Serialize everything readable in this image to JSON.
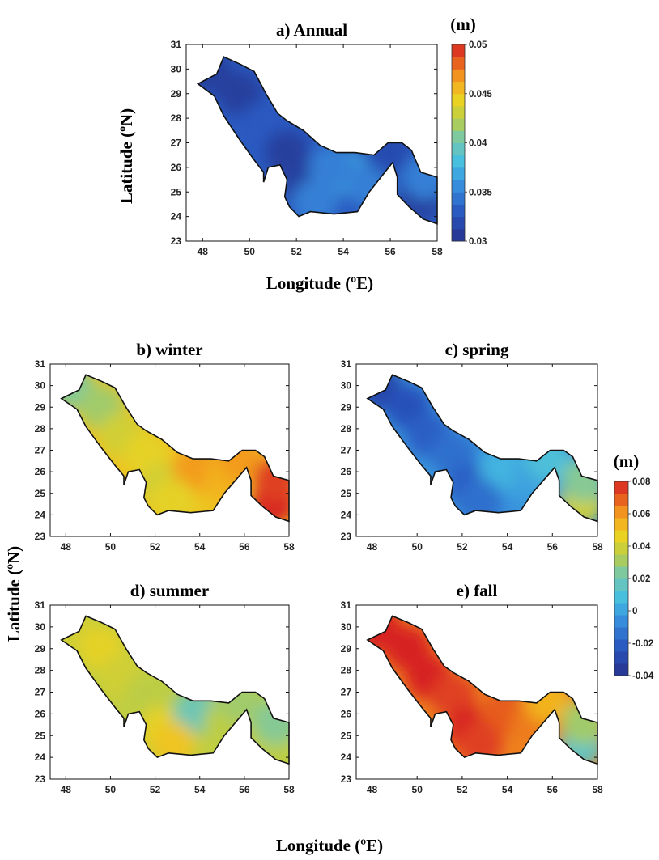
{
  "figure": {
    "top_xlabel": "Longitude (ºE)",
    "top_ylabel": "Latitude (ºN)",
    "bottom_xlabel": "Longitude (ºE)",
    "bottom_ylabel": "Latitude (ºN)"
  },
  "chart_data": [
    {
      "type": "heatmap",
      "panel": "annual",
      "title": "a) Annual",
      "xlabel": "Longitude (ºE)",
      "ylabel": "Latitude (ºN)",
      "xlim": [
        47.3,
        58
      ],
      "ylim": [
        23,
        31
      ],
      "xticks": [
        "48",
        "50",
        "52",
        "54",
        "56",
        "58"
      ],
      "yticks": [
        "23",
        "24",
        "25",
        "26",
        "27",
        "28",
        "29",
        "30",
        "31"
      ],
      "colorbar": {
        "label": "(m)",
        "range": [
          0.03,
          0.05
        ],
        "ticks": [
          "0.03",
          "0.035",
          "0.04",
          "0.045",
          "0.05"
        ]
      },
      "points": [
        {
          "lon": 48.3,
          "lat": 29.9,
          "value": 0.031
        },
        {
          "lon": 49.6,
          "lat": 29.0,
          "value": 0.031
        },
        {
          "lon": 50.5,
          "lat": 27.7,
          "value": 0.033
        },
        {
          "lon": 51.6,
          "lat": 26.6,
          "value": 0.031
        },
        {
          "lon": 52.3,
          "lat": 25.3,
          "value": 0.031
        },
        {
          "lon": 54.1,
          "lat": 25.8,
          "value": 0.037
        },
        {
          "lon": 55.1,
          "lat": 25.3,
          "value": 0.035
        },
        {
          "lon": 56.0,
          "lat": 26.6,
          "value": 0.032
        },
        {
          "lon": 57.3,
          "lat": 24.8,
          "value": 0.031
        },
        {
          "lon": 57.5,
          "lat": 25.6,
          "value": 0.035
        },
        {
          "lon": 53.5,
          "lat": 26.0,
          "value": 0.035
        },
        {
          "lon": 52.8,
          "lat": 24.6,
          "value": 0.035
        }
      ]
    },
    {
      "type": "heatmap",
      "panel": "winter",
      "title": "b) winter",
      "xlim": [
        47.3,
        58
      ],
      "ylim": [
        23,
        31
      ],
      "xticks": [
        "48",
        "50",
        "52",
        "54",
        "56",
        "58"
      ],
      "yticks": [
        "23",
        "24",
        "25",
        "26",
        "27",
        "28",
        "29",
        "30",
        "31"
      ],
      "points": [
        {
          "lon": 48.3,
          "lat": 29.9,
          "value": 0.025
        },
        {
          "lon": 49.6,
          "lat": 29.0,
          "value": 0.03
        },
        {
          "lon": 50.5,
          "lat": 27.7,
          "value": 0.04
        },
        {
          "lon": 51.6,
          "lat": 26.8,
          "value": 0.045
        },
        {
          "lon": 52.3,
          "lat": 25.3,
          "value": 0.04
        },
        {
          "lon": 53.8,
          "lat": 26.1,
          "value": 0.06
        },
        {
          "lon": 55.2,
          "lat": 25.6,
          "value": 0.055
        },
        {
          "lon": 55.8,
          "lat": 26.6,
          "value": 0.06
        },
        {
          "lon": 57.3,
          "lat": 24.6,
          "value": 0.08
        },
        {
          "lon": 57.4,
          "lat": 25.6,
          "value": 0.075
        },
        {
          "lon": 52.8,
          "lat": 24.6,
          "value": 0.045
        }
      ]
    },
    {
      "type": "heatmap",
      "panel": "spring",
      "title": "c) spring",
      "xlim": [
        47.3,
        58
      ],
      "ylim": [
        23,
        31
      ],
      "xticks": [
        "48",
        "50",
        "52",
        "54",
        "56",
        "58"
      ],
      "yticks": [
        "23",
        "24",
        "25",
        "26",
        "27",
        "28",
        "29",
        "30",
        "31"
      ],
      "points": [
        {
          "lon": 48.3,
          "lat": 29.9,
          "value": -0.03
        },
        {
          "lon": 49.6,
          "lat": 29.0,
          "value": -0.025
        },
        {
          "lon": 50.5,
          "lat": 27.7,
          "value": -0.02
        },
        {
          "lon": 51.6,
          "lat": 26.8,
          "value": -0.015
        },
        {
          "lon": 52.3,
          "lat": 25.3,
          "value": -0.02
        },
        {
          "lon": 53.8,
          "lat": 26.1,
          "value": 0.005
        },
        {
          "lon": 55.2,
          "lat": 25.6,
          "value": 0.0
        },
        {
          "lon": 55.8,
          "lat": 26.6,
          "value": 0.01
        },
        {
          "lon": 57.3,
          "lat": 24.6,
          "value": 0.04
        },
        {
          "lon": 57.4,
          "lat": 25.6,
          "value": 0.025
        },
        {
          "lon": 52.8,
          "lat": 24.6,
          "value": -0.015
        }
      ]
    },
    {
      "type": "heatmap",
      "panel": "summer",
      "title": "d) summer",
      "xlim": [
        47.3,
        58
      ],
      "ylim": [
        23,
        31
      ],
      "xticks": [
        "48",
        "50",
        "52",
        "54",
        "56",
        "58"
      ],
      "yticks": [
        "23",
        "24",
        "25",
        "26",
        "27",
        "28",
        "29",
        "30",
        "31"
      ],
      "points": [
        {
          "lon": 48.3,
          "lat": 29.9,
          "value": 0.04
        },
        {
          "lon": 49.6,
          "lat": 29.0,
          "value": 0.045
        },
        {
          "lon": 50.5,
          "lat": 27.7,
          "value": 0.04
        },
        {
          "lon": 51.6,
          "lat": 26.8,
          "value": 0.035
        },
        {
          "lon": 52.3,
          "lat": 25.3,
          "value": 0.045
        },
        {
          "lon": 53.8,
          "lat": 26.1,
          "value": 0.02
        },
        {
          "lon": 55.2,
          "lat": 25.6,
          "value": 0.035
        },
        {
          "lon": 55.8,
          "lat": 26.6,
          "value": 0.03
        },
        {
          "lon": 57.3,
          "lat": 24.6,
          "value": 0.035
        },
        {
          "lon": 57.4,
          "lat": 25.6,
          "value": 0.025
        },
        {
          "lon": 52.8,
          "lat": 24.6,
          "value": 0.05
        }
      ]
    },
    {
      "type": "heatmap",
      "panel": "fall",
      "title": "e) fall",
      "xlim": [
        47.3,
        58
      ],
      "ylim": [
        23,
        31
      ],
      "xticks": [
        "48",
        "50",
        "52",
        "54",
        "56",
        "58"
      ],
      "yticks": [
        "23",
        "24",
        "25",
        "26",
        "27",
        "28",
        "29",
        "30",
        "31"
      ],
      "colorbar": {
        "label": "(m)",
        "range": [
          -0.04,
          0.08
        ],
        "ticks": [
          "-0.04",
          "-0.02",
          "0",
          "0.02",
          "0.04",
          "0.06",
          "0.08"
        ]
      },
      "points": [
        {
          "lon": 48.3,
          "lat": 29.9,
          "value": 0.08
        },
        {
          "lon": 49.6,
          "lat": 29.0,
          "value": 0.08
        },
        {
          "lon": 50.5,
          "lat": 27.7,
          "value": 0.08
        },
        {
          "lon": 51.6,
          "lat": 26.8,
          "value": 0.075
        },
        {
          "lon": 52.3,
          "lat": 25.3,
          "value": 0.08
        },
        {
          "lon": 53.8,
          "lat": 26.1,
          "value": 0.07
        },
        {
          "lon": 55.2,
          "lat": 25.6,
          "value": 0.065
        },
        {
          "lon": 55.8,
          "lat": 26.6,
          "value": 0.055
        },
        {
          "lon": 57.3,
          "lat": 24.6,
          "value": 0.015
        },
        {
          "lon": 57.4,
          "lat": 25.6,
          "value": 0.03
        },
        {
          "lon": 52.8,
          "lat": 24.6,
          "value": 0.075
        }
      ]
    }
  ]
}
